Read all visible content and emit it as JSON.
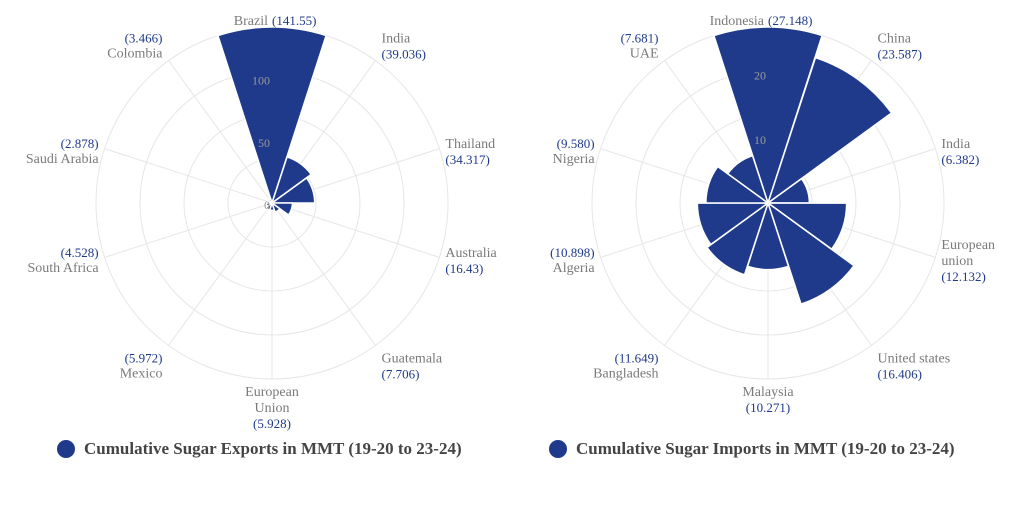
{
  "colors": {
    "bar": "#1f3a8a",
    "grid": "#e6e6e6",
    "label": "#7a7a7a",
    "value": "#1f3a8a"
  },
  "chart_data": [
    {
      "type": "polar-bar",
      "legend": "Cumulative Sugar Exports in MMT (19-20 to 23-24)",
      "categories": [
        "Brazil",
        "India",
        "Thailand",
        "Australia",
        "Guatemala",
        "European Union",
        "Mexico",
        "South Africa",
        "Saudi Arabia",
        "Colombia"
      ],
      "label_lines": [
        [
          "Brazil"
        ],
        [
          "India"
        ],
        [
          "Thailand"
        ],
        [
          "Australia"
        ],
        [
          "Guatemala"
        ],
        [
          "European",
          "Union"
        ],
        [
          "Mexico"
        ],
        [
          "South Africa"
        ],
        [
          "Saudi Arabia"
        ],
        [
          "Colombia"
        ]
      ],
      "values": [
        141.55,
        39.036,
        34.317,
        16.43,
        7.706,
        5.928,
        5.972,
        4.528,
        2.878,
        3.466
      ],
      "value_labels": [
        "(141.55)",
        "(39.036)",
        "(34.317)",
        "(16.43)",
        "(7.706)",
        "(5.928)",
        "(5.972)",
        "(4.528)",
        "(2.878)",
        "(3.466)"
      ],
      "ticks": [
        0,
        50,
        100
      ],
      "rmax": 141.55,
      "grid": true,
      "legend_position": "bottom"
    },
    {
      "type": "polar-bar",
      "legend": "Cumulative Sugar Imports in MMT (19-20 to 23-24)",
      "categories": [
        "Indonesia",
        "China",
        "India",
        "European union",
        "United states",
        "Malaysia",
        "Bangladesh",
        "Algeria",
        "Nigeria",
        "UAE"
      ],
      "label_lines": [
        [
          "Indonesia"
        ],
        [
          "China"
        ],
        [
          "India"
        ],
        [
          "European",
          "union"
        ],
        [
          "United states"
        ],
        [
          "Malaysia"
        ],
        [
          "Bangladesh"
        ],
        [
          "Algeria"
        ],
        [
          "Nigeria"
        ],
        [
          "UAE"
        ]
      ],
      "values": [
        27.148,
        23.587,
        6.382,
        12.132,
        16.406,
        10.271,
        11.649,
        10.898,
        9.58,
        7.681
      ],
      "value_labels": [
        "(27.148)",
        "(23.587)",
        "(6.382)",
        "(12.132)",
        "(16.406)",
        "(10.271)",
        "(11.649)",
        "(10.898)",
        "(9.580)",
        "(7.681)"
      ],
      "ticks": [
        10,
        20
      ],
      "rmax": 27.148,
      "grid": true,
      "legend_position": "bottom"
    }
  ]
}
